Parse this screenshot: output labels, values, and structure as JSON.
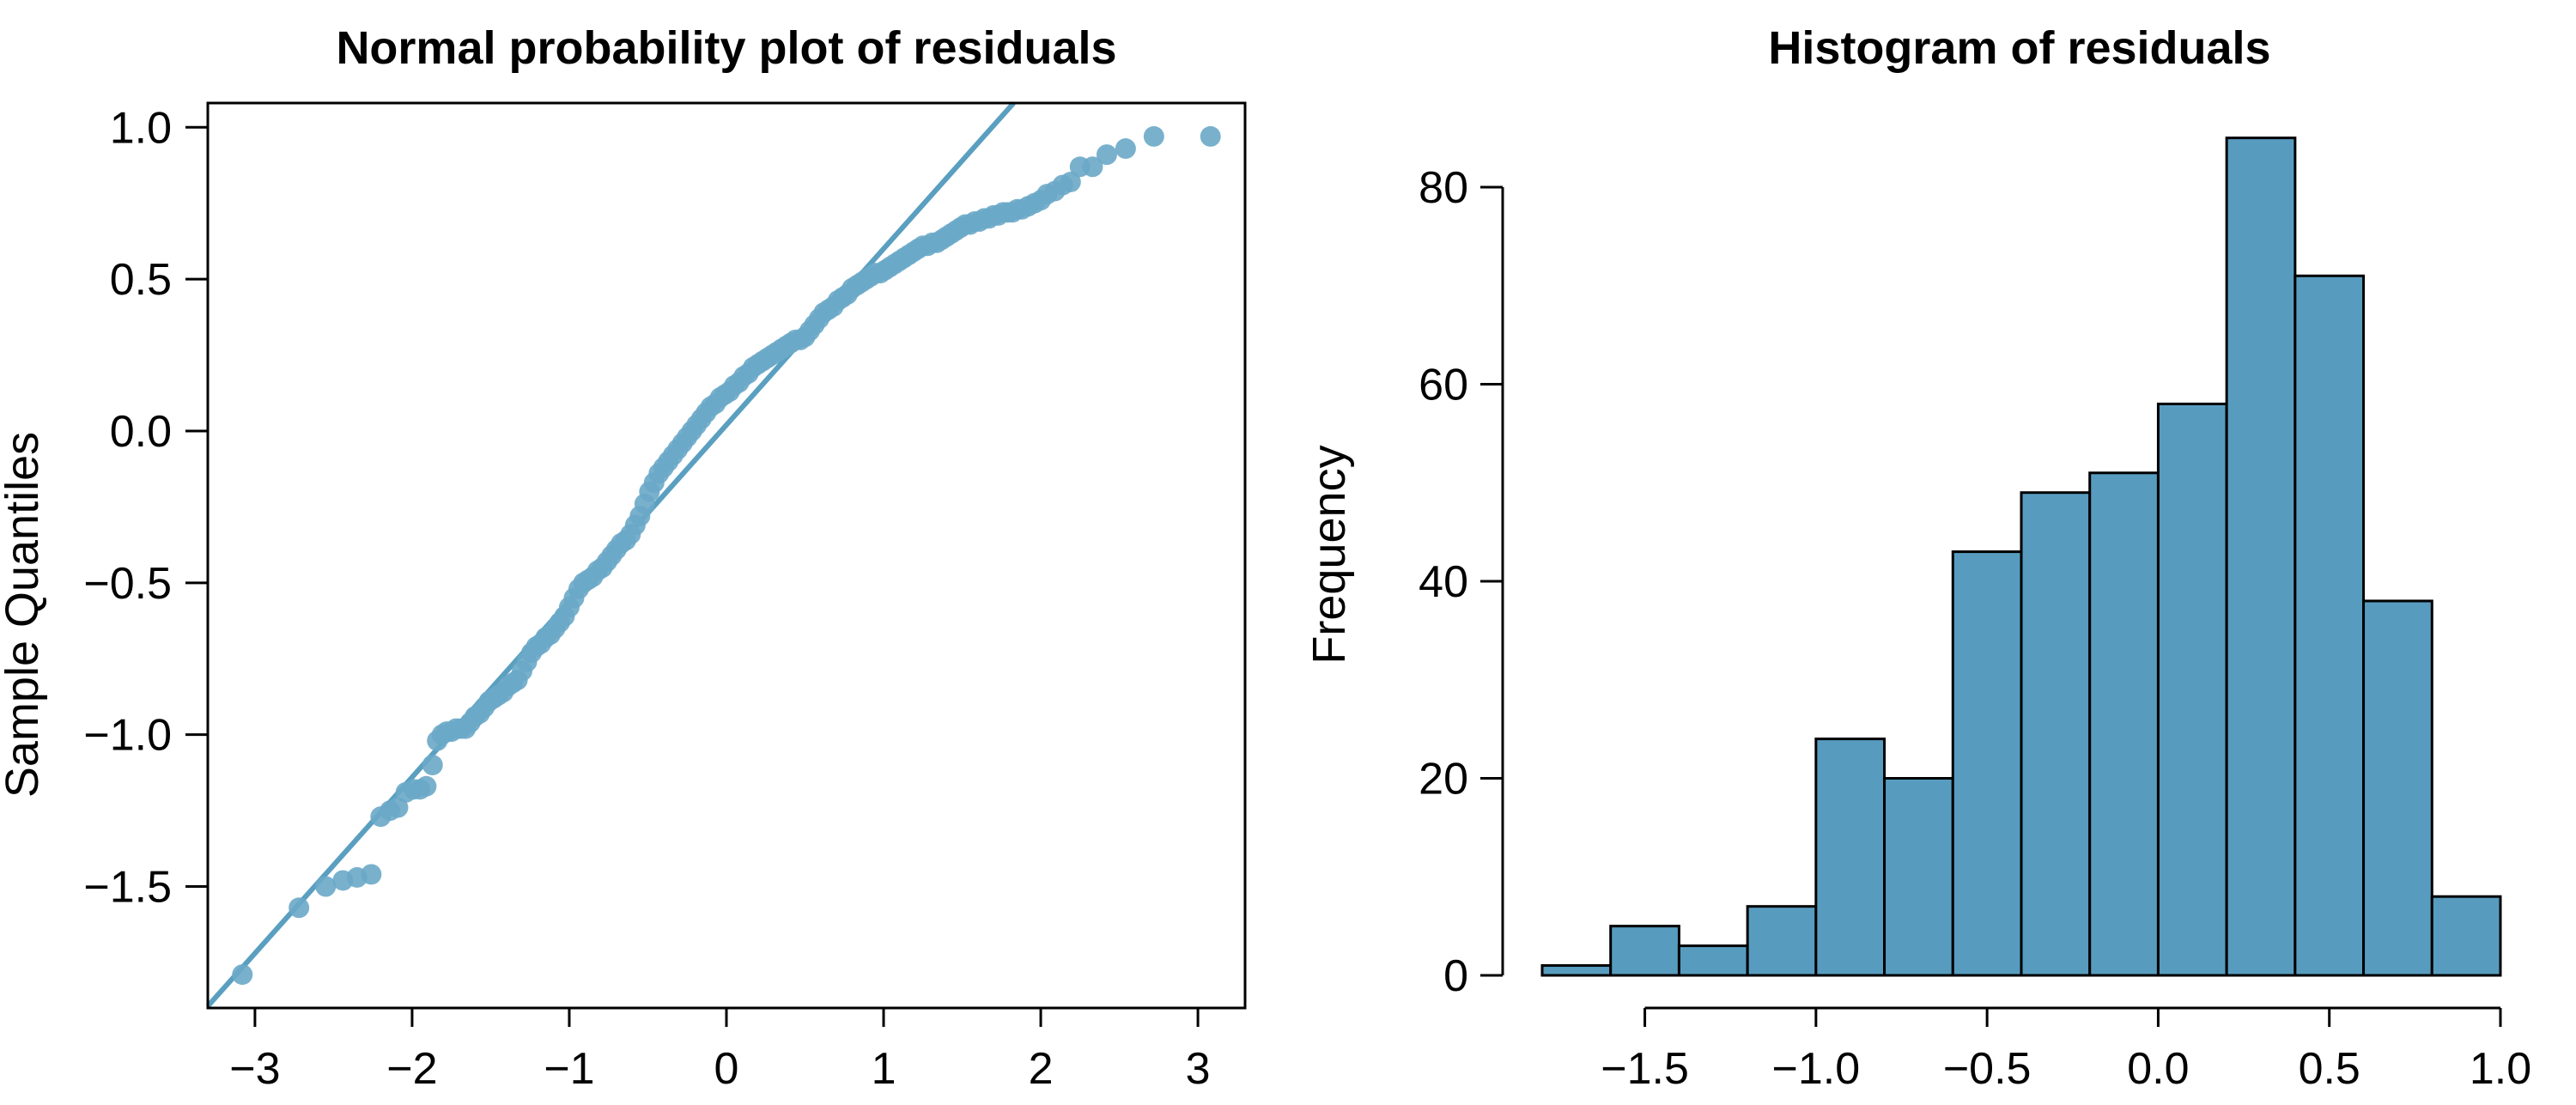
{
  "chart_data": [
    {
      "type": "scatter",
      "title": "Normal probability plot of residuals",
      "xlabel": "",
      "ylabel": "Sample Quantiles",
      "xlim": [
        -3.3,
        3.3
      ],
      "ylim": [
        -1.9,
        1.08
      ],
      "grid": false,
      "x_ticks": [
        -3,
        -2,
        -1,
        0,
        1,
        2,
        3
      ],
      "x_tick_labels": [
        "−3",
        "−2",
        "−1",
        "0",
        "1",
        "2",
        "3"
      ],
      "y_ticks": [
        1.0,
        0.5,
        0.0,
        -0.5,
        -1.0,
        -1.5
      ],
      "y_tick_labels": [
        "1.0",
        "0.5",
        "0.0",
        "−0.5",
        "−1.0",
        "−1.5"
      ],
      "reference_line": {
        "slope": 0.58,
        "intercept": 0.02
      },
      "point_color": "#6aa8c8",
      "line_color": "#5a9fc0",
      "points": [
        [
          -3.08,
          -1.79
        ],
        [
          -2.72,
          -1.57
        ],
        [
          -2.55,
          -1.5
        ],
        [
          -2.44,
          -1.48
        ],
        [
          -2.35,
          -1.47
        ],
        [
          -2.26,
          -1.46
        ],
        [
          -2.2,
          -1.27
        ],
        [
          -2.14,
          -1.25
        ],
        [
          -2.09,
          -1.24
        ],
        [
          -2.04,
          -1.19
        ],
        [
          -1.99,
          -1.18
        ],
        [
          -1.95,
          -1.18
        ],
        [
          -1.91,
          -1.17
        ],
        [
          -1.87,
          -1.1
        ],
        [
          -1.84,
          -1.02
        ],
        [
          -1.81,
          -1.0
        ],
        [
          -1.78,
          -0.99
        ],
        [
          -1.75,
          -0.99
        ],
        [
          -1.72,
          -0.98
        ],
        [
          -1.69,
          -0.98
        ],
        [
          -1.66,
          -0.98
        ],
        [
          -1.63,
          -0.96
        ],
        [
          -1.6,
          -0.94
        ],
        [
          -1.57,
          -0.93
        ],
        [
          -1.54,
          -0.91
        ],
        [
          -1.51,
          -0.89
        ],
        [
          -1.48,
          -0.88
        ],
        [
          -1.45,
          -0.87
        ],
        [
          -1.42,
          -0.86
        ],
        [
          -1.39,
          -0.84
        ],
        [
          -1.36,
          -0.83
        ],
        [
          -1.33,
          -0.82
        ],
        [
          -1.3,
          -0.79
        ],
        [
          -1.27,
          -0.76
        ],
        [
          -1.24,
          -0.73
        ],
        [
          -1.21,
          -0.71
        ],
        [
          -1.18,
          -0.7
        ],
        [
          -1.15,
          -0.68
        ],
        [
          -1.12,
          -0.67
        ],
        [
          -1.09,
          -0.65
        ],
        [
          -1.06,
          -0.63
        ],
        [
          -1.03,
          -0.61
        ],
        [
          -1.0,
          -0.58
        ],
        [
          -0.97,
          -0.55
        ],
        [
          -0.94,
          -0.52
        ],
        [
          -0.91,
          -0.5
        ],
        [
          -0.88,
          -0.49
        ],
        [
          -0.85,
          -0.48
        ],
        [
          -0.82,
          -0.46
        ],
        [
          -0.79,
          -0.45
        ],
        [
          -0.76,
          -0.43
        ],
        [
          -0.73,
          -0.41
        ],
        [
          -0.7,
          -0.39
        ],
        [
          -0.67,
          -0.37
        ],
        [
          -0.64,
          -0.36
        ],
        [
          -0.61,
          -0.34
        ],
        [
          -0.58,
          -0.31
        ],
        [
          -0.55,
          -0.28
        ],
        [
          -0.52,
          -0.24
        ],
        [
          -0.49,
          -0.2
        ],
        [
          -0.46,
          -0.17
        ],
        [
          -0.43,
          -0.14
        ],
        [
          -0.4,
          -0.12
        ],
        [
          -0.37,
          -0.1
        ],
        [
          -0.34,
          -0.08
        ],
        [
          -0.31,
          -0.06
        ],
        [
          -0.28,
          -0.04
        ],
        [
          -0.25,
          -0.02
        ],
        [
          -0.22,
          0.0
        ],
        [
          -0.19,
          0.02
        ],
        [
          -0.16,
          0.04
        ],
        [
          -0.13,
          0.06
        ],
        [
          -0.1,
          0.08
        ],
        [
          -0.07,
          0.09
        ],
        [
          -0.04,
          0.11
        ],
        [
          -0.01,
          0.12
        ],
        [
          0.02,
          0.13
        ],
        [
          0.05,
          0.15
        ],
        [
          0.08,
          0.16
        ],
        [
          0.11,
          0.18
        ],
        [
          0.14,
          0.19
        ],
        [
          0.17,
          0.21
        ],
        [
          0.2,
          0.22
        ],
        [
          0.23,
          0.23
        ],
        [
          0.26,
          0.24
        ],
        [
          0.29,
          0.25
        ],
        [
          0.32,
          0.26
        ],
        [
          0.35,
          0.27
        ],
        [
          0.38,
          0.28
        ],
        [
          0.41,
          0.29
        ],
        [
          0.44,
          0.3
        ],
        [
          0.47,
          0.3
        ],
        [
          0.5,
          0.31
        ],
        [
          0.53,
          0.33
        ],
        [
          0.56,
          0.35
        ],
        [
          0.59,
          0.37
        ],
        [
          0.62,
          0.39
        ],
        [
          0.65,
          0.4
        ],
        [
          0.68,
          0.41
        ],
        [
          0.71,
          0.43
        ],
        [
          0.74,
          0.44
        ],
        [
          0.77,
          0.45
        ],
        [
          0.8,
          0.47
        ],
        [
          0.83,
          0.48
        ],
        [
          0.86,
          0.49
        ],
        [
          0.89,
          0.5
        ],
        [
          0.92,
          0.51
        ],
        [
          0.95,
          0.52
        ],
        [
          0.98,
          0.52
        ],
        [
          1.01,
          0.53
        ],
        [
          1.04,
          0.54
        ],
        [
          1.07,
          0.55
        ],
        [
          1.1,
          0.56
        ],
        [
          1.13,
          0.57
        ],
        [
          1.16,
          0.58
        ],
        [
          1.19,
          0.59
        ],
        [
          1.22,
          0.6
        ],
        [
          1.25,
          0.61
        ],
        [
          1.28,
          0.61
        ],
        [
          1.31,
          0.62
        ],
        [
          1.34,
          0.62
        ],
        [
          1.37,
          0.63
        ],
        [
          1.4,
          0.64
        ],
        [
          1.43,
          0.65
        ],
        [
          1.46,
          0.66
        ],
        [
          1.49,
          0.67
        ],
        [
          1.52,
          0.68
        ],
        [
          1.55,
          0.68
        ],
        [
          1.58,
          0.69
        ],
        [
          1.61,
          0.69
        ],
        [
          1.64,
          0.7
        ],
        [
          1.67,
          0.7
        ],
        [
          1.7,
          0.71
        ],
        [
          1.73,
          0.71
        ],
        [
          1.76,
          0.72
        ],
        [
          1.79,
          0.72
        ],
        [
          1.82,
          0.72
        ],
        [
          1.85,
          0.73
        ],
        [
          1.88,
          0.73
        ],
        [
          1.92,
          0.74
        ],
        [
          1.96,
          0.75
        ],
        [
          2.0,
          0.76
        ],
        [
          2.04,
          0.78
        ],
        [
          2.09,
          0.79
        ],
        [
          2.14,
          0.81
        ],
        [
          2.19,
          0.82
        ],
        [
          2.25,
          0.87
        ],
        [
          2.33,
          0.87
        ],
        [
          2.42,
          0.91
        ],
        [
          2.54,
          0.93
        ],
        [
          2.72,
          0.97
        ],
        [
          3.08,
          0.97
        ]
      ]
    },
    {
      "type": "bar",
      "title": "Histogram of residuals",
      "xlabel": "",
      "ylabel": "Frequency",
      "bin_width": 0.2,
      "bin_edges": [
        -1.8,
        -1.6,
        -1.4,
        -1.2,
        -1.0,
        -0.8,
        -0.6,
        -0.4,
        -0.2,
        0.0,
        0.2,
        0.4,
        0.6,
        0.8,
        1.0
      ],
      "values": [
        1,
        5,
        3,
        7,
        24,
        20,
        43,
        49,
        51,
        58,
        85,
        71,
        38,
        8
      ],
      "xlim": [
        -1.8,
        1.0
      ],
      "ylim": [
        0,
        85
      ],
      "x_ticks": [
        -1.5,
        -1.0,
        -0.5,
        0.0,
        0.5,
        1.0
      ],
      "x_tick_labels": [
        "−1.5",
        "−1.0",
        "−0.5",
        "0.0",
        "0.5",
        "1.0"
      ],
      "y_ticks": [
        0,
        20,
        40,
        60,
        80
      ],
      "y_tick_labels": [
        "0",
        "20",
        "40",
        "60",
        "80"
      ],
      "grid": false,
      "bar_color": "#579cbf"
    }
  ]
}
